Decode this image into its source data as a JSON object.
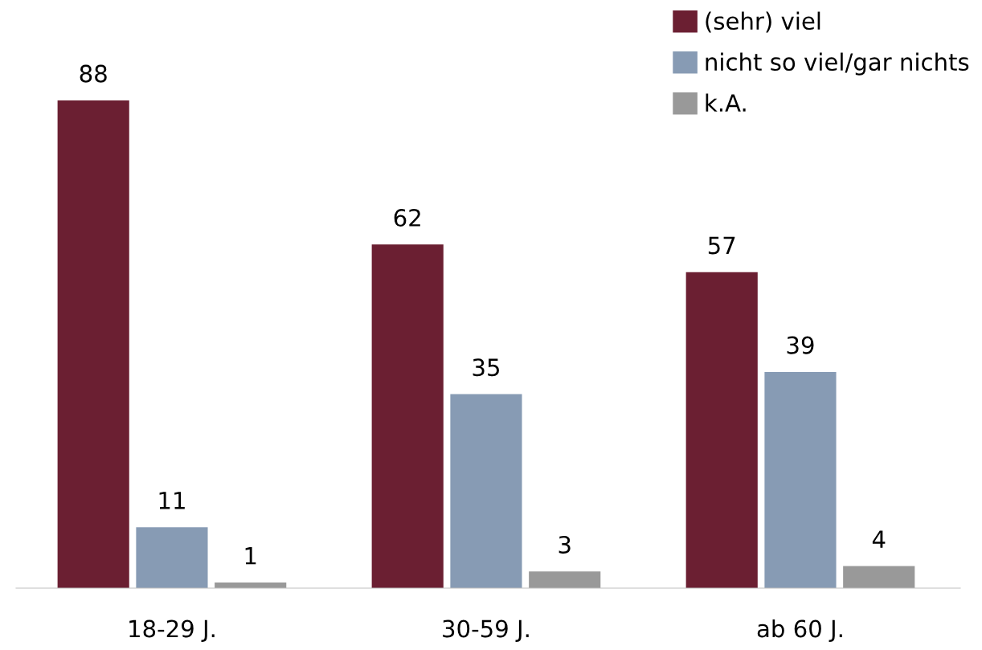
{
  "chart_data": {
    "type": "bar",
    "categories": [
      "18-29 J.",
      "30-59 J.",
      "ab 60 J."
    ],
    "series": [
      {
        "name": "(sehr) viel",
        "color": "#6b1f32",
        "values": [
          88,
          62,
          57
        ]
      },
      {
        "name": "nicht so viel/gar nichts",
        "color": "#879bb4",
        "values": [
          11,
          35,
          39
        ]
      },
      {
        "name": "k.A.",
        "color": "#999999",
        "values": [
          1,
          3,
          4
        ]
      }
    ],
    "data_labels": true,
    "legend": "top right",
    "grid": false
  }
}
